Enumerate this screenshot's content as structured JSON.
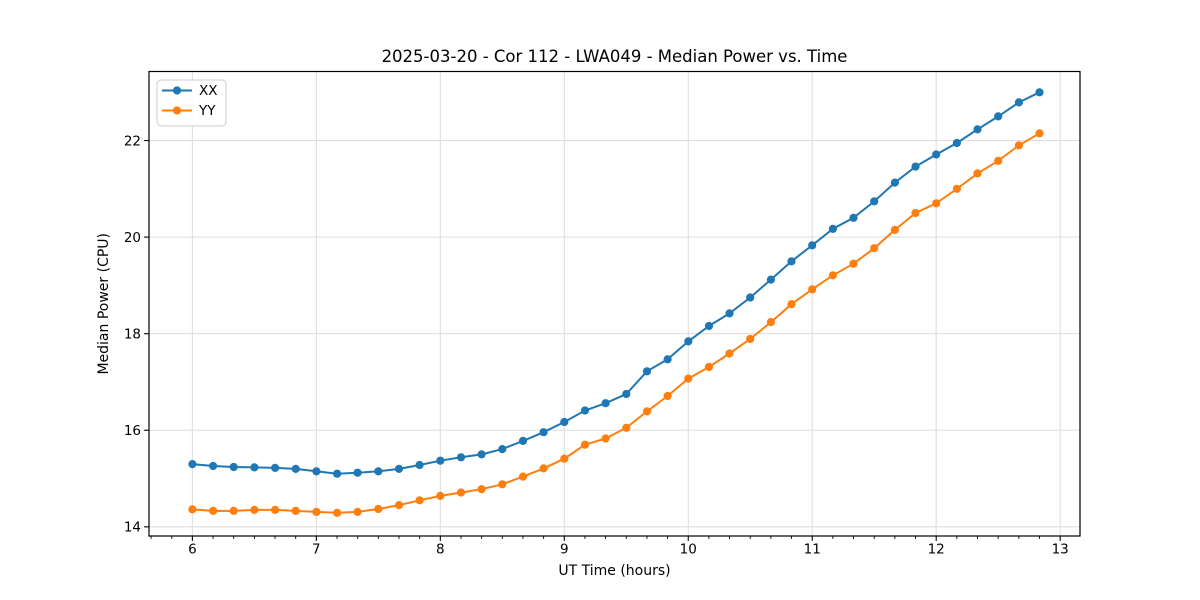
{
  "chart_data": {
    "type": "line",
    "title": "2025-03-20 - Cor 112 - LWA049 - Median Power vs. Time",
    "xlabel": "UT Time (hours)",
    "ylabel": "Median Power (CPU)",
    "xlim": [
      5.65,
      13.16
    ],
    "ylim": [
      13.81,
      23.43
    ],
    "x_ticks": [
      6,
      7,
      8,
      9,
      10,
      11,
      12,
      13
    ],
    "y_ticks": [
      14,
      16,
      18,
      20,
      22
    ],
    "x_minor_tick_interval": 0.1667,
    "grid": true,
    "legend_position": "upper-left",
    "x": [
      6,
      6.167,
      6.333,
      6.5,
      6.667,
      6.833,
      7,
      7.167,
      7.333,
      7.5,
      7.667,
      7.833,
      8,
      8.167,
      8.333,
      8.5,
      8.667,
      8.833,
      9,
      9.167,
      9.333,
      9.5,
      9.667,
      9.833,
      10,
      10.167,
      10.333,
      10.5,
      10.667,
      10.833,
      11,
      11.167,
      11.333,
      11.5,
      11.667,
      11.833,
      12,
      12.167,
      12.333,
      12.5,
      12.667,
      12.833
    ],
    "series": [
      {
        "name": "XX",
        "color": "#1f77b4",
        "values": [
          15.3,
          15.26,
          15.24,
          15.23,
          15.22,
          15.2,
          15.15,
          15.1,
          15.12,
          15.15,
          15.2,
          15.28,
          15.37,
          15.44,
          15.5,
          15.61,
          15.78,
          15.96,
          16.17,
          16.41,
          16.56,
          16.75,
          17.22,
          17.47,
          17.84,
          18.16,
          18.42,
          18.75,
          19.12,
          19.5,
          19.83,
          20.17,
          20.4,
          20.74,
          21.13,
          21.46,
          21.71,
          21.95,
          22.23,
          22.5,
          22.79,
          23.0
        ]
      },
      {
        "name": "YY",
        "color": "#ff7f0e",
        "values": [
          14.36,
          14.33,
          14.33,
          14.35,
          14.35,
          14.33,
          14.31,
          14.29,
          14.31,
          14.37,
          14.45,
          14.55,
          14.64,
          14.71,
          14.78,
          14.88,
          15.04,
          15.21,
          15.41,
          15.7,
          15.83,
          16.05,
          16.39,
          16.71,
          17.07,
          17.31,
          17.59,
          17.89,
          18.24,
          18.61,
          18.92,
          19.21,
          19.45,
          19.77,
          20.15,
          20.5,
          20.7,
          21.0,
          21.32,
          21.58,
          21.9,
          22.15
        ]
      }
    ]
  },
  "colors": {
    "grid": "#dedede",
    "spine": "#000000",
    "text": "#000000",
    "background": "#ffffff",
    "legend_border": "#cccccc"
  }
}
